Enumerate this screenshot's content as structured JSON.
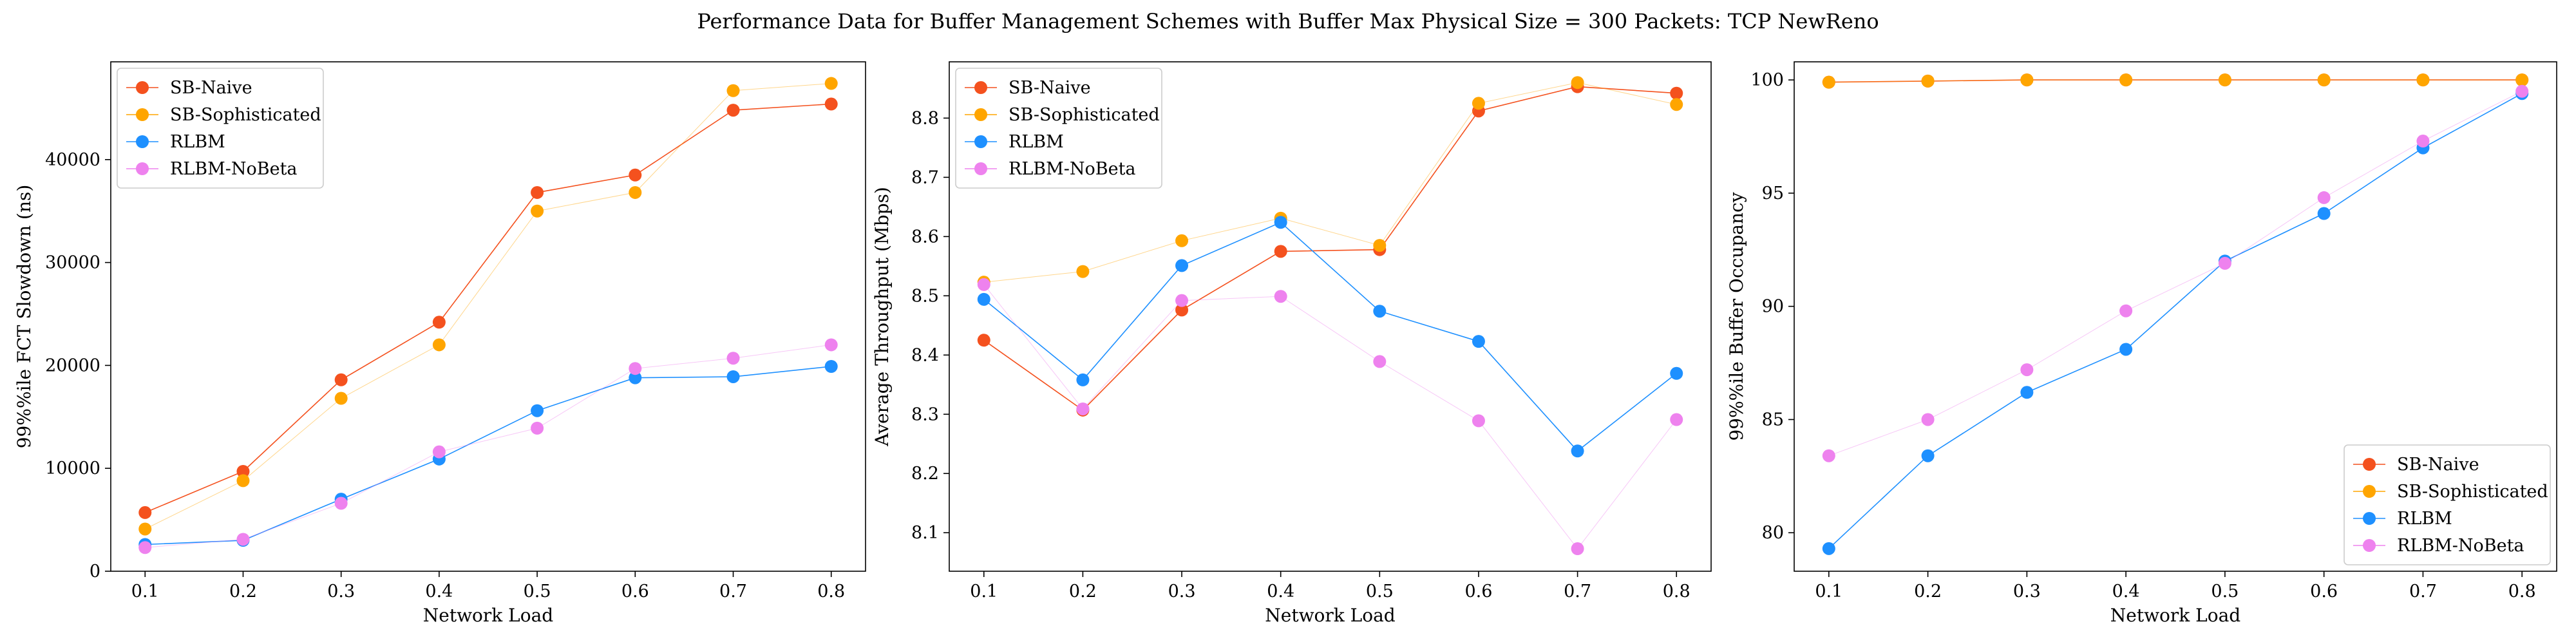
{
  "title": "Performance Data for Buffer Management Schemes with Buffer Max Physical Size = 300 Packets: TCP NewReno",
  "colors": {
    "SB-Naive": "#f4511e",
    "SB-Sophisticated": "#ffa500",
    "RLBM": "#1e90ff",
    "RLBM-NoBeta": "#ee82ee"
  },
  "chart_data": [
    {
      "type": "line",
      "xlabel": "Network Load",
      "ylabel": "99%%ile FCT Slowdown (ns)",
      "x": [
        0.1,
        0.2,
        0.3,
        0.4,
        0.5,
        0.6,
        0.7,
        0.8
      ],
      "xticks": [
        "0.1",
        "0.2",
        "0.3",
        "0.4",
        "0.5",
        "0.6",
        "0.7",
        "0.8"
      ],
      "xlim": [
        0.065,
        0.835
      ],
      "ylim": [
        0,
        49500
      ],
      "yticks": [
        0,
        10000,
        20000,
        30000,
        40000
      ],
      "ytick_labels": [
        "0",
        "10000",
        "20000",
        "30000",
        "40000"
      ],
      "legend": "upper left",
      "series": [
        {
          "name": "SB-Naive",
          "values": [
            5700,
            9700,
            18600,
            24200,
            36800,
            38500,
            44800,
            45400
          ]
        },
        {
          "name": "SB-Sophisticated",
          "values": [
            4100,
            8800,
            16800,
            22000,
            35000,
            36800,
            46700,
            47400
          ]
        },
        {
          "name": "RLBM",
          "values": [
            2600,
            3000,
            7000,
            10900,
            15600,
            18800,
            18900,
            19900
          ]
        },
        {
          "name": "RLBM-NoBeta",
          "values": [
            2300,
            3100,
            6600,
            11600,
            13900,
            19700,
            20700,
            22000
          ]
        }
      ]
    },
    {
      "type": "line",
      "xlabel": "Network Load",
      "ylabel": "Average Throughput (Mbps)",
      "x": [
        0.1,
        0.2,
        0.3,
        0.4,
        0.5,
        0.6,
        0.7,
        0.8
      ],
      "xticks": [
        "0.1",
        "0.2",
        "0.3",
        "0.4",
        "0.5",
        "0.6",
        "0.7",
        "0.8"
      ],
      "xlim": [
        0.065,
        0.835
      ],
      "ylim": [
        8.035,
        8.895
      ],
      "yticks": [
        8.1,
        8.2,
        8.3,
        8.4,
        8.5,
        8.6,
        8.7,
        8.8
      ],
      "ytick_labels": [
        "8.1",
        "8.2",
        "8.3",
        "8.4",
        "8.5",
        "8.6",
        "8.7",
        "8.8"
      ],
      "legend": "upper left",
      "series": [
        {
          "name": "SB-Naive",
          "values": [
            8.425,
            8.307,
            8.476,
            8.575,
            8.578,
            8.812,
            8.853,
            8.842
          ]
        },
        {
          "name": "SB-Sophisticated",
          "values": [
            8.523,
            8.541,
            8.593,
            8.631,
            8.585,
            8.825,
            8.86,
            8.823
          ]
        },
        {
          "name": "RLBM",
          "values": [
            8.494,
            8.358,
            8.551,
            8.624,
            8.474,
            8.423,
            8.238,
            8.369
          ]
        },
        {
          "name": "RLBM-NoBeta",
          "values": [
            8.519,
            8.309,
            8.492,
            8.499,
            8.389,
            8.289,
            8.073,
            8.291
          ]
        }
      ]
    },
    {
      "type": "line",
      "xlabel": "Network Load",
      "ylabel": "99%%ile Buffer Occupancy",
      "x": [
        0.1,
        0.2,
        0.3,
        0.4,
        0.5,
        0.6,
        0.7,
        0.8
      ],
      "xticks": [
        "0.1",
        "0.2",
        "0.3",
        "0.4",
        "0.5",
        "0.6",
        "0.7",
        "0.8"
      ],
      "xlim": [
        0.065,
        0.835
      ],
      "ylim": [
        78.3,
        100.8
      ],
      "yticks": [
        80,
        85,
        90,
        95,
        100
      ],
      "ytick_labels": [
        "80",
        "85",
        "90",
        "95",
        "100"
      ],
      "legend": "lower right",
      "series": [
        {
          "name": "SB-Naive",
          "values": [
            99.9,
            99.95,
            100,
            100,
            100,
            100,
            100,
            100
          ]
        },
        {
          "name": "SB-Sophisticated",
          "values": [
            99.9,
            99.95,
            100,
            100,
            100,
            100,
            100,
            100
          ]
        },
        {
          "name": "RLBM",
          "values": [
            79.3,
            83.4,
            86.2,
            88.1,
            92.0,
            94.1,
            97.0,
            99.4
          ]
        },
        {
          "name": "RLBM-NoBeta",
          "values": [
            83.4,
            85.0,
            87.2,
            89.8,
            91.9,
            94.8,
            97.3,
            99.5
          ]
        }
      ]
    }
  ]
}
